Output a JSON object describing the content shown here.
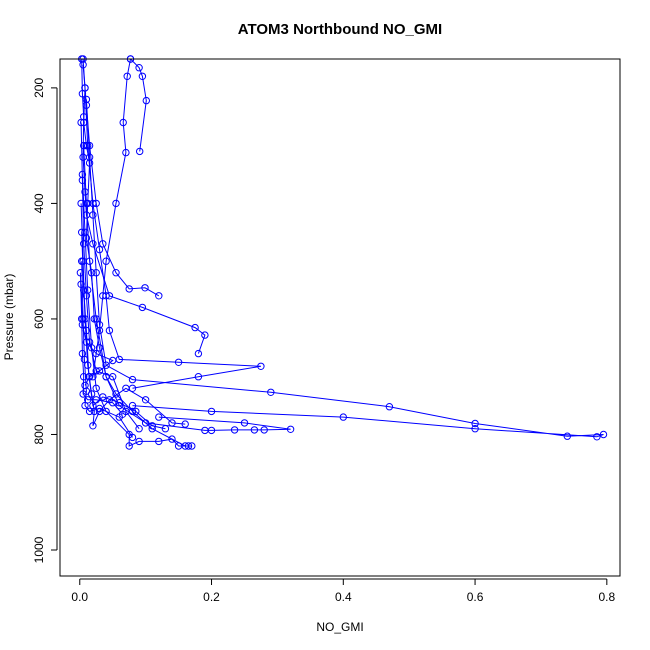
{
  "chart_data": {
    "type": "scatter",
    "title": "ATOM3 Northbound NO_GMI",
    "xlabel": "NO_GMI",
    "ylabel": "Pressure (mbar)",
    "xlim": [
      -0.03,
      0.82
    ],
    "ylim": [
      1045,
      150
    ],
    "y_reversed": true,
    "x_ticks": [
      0.0,
      0.2,
      0.4,
      0.6,
      0.8
    ],
    "x_tick_labels": [
      "0.0",
      "0.2",
      "0.4",
      "0.6",
      "0.8"
    ],
    "y_ticks": [
      200,
      400,
      600,
      800,
      1000
    ],
    "y_tick_labels": [
      "200",
      "400",
      "600",
      "800",
      "1000"
    ],
    "grid": false,
    "style": "points connected by lines, open circles",
    "series_color": "#0000ff",
    "series": [
      {
        "segments": [
          [
            [
              0.077,
              150
            ],
            [
              0.09,
              165
            ],
            [
              0.095,
              180
            ],
            [
              0.101,
              222
            ],
            [
              0.091,
              310
            ]
          ],
          [
            [
              0.077,
              150
            ],
            [
              0.072,
              180
            ],
            [
              0.066,
              260
            ],
            [
              0.07,
              312
            ],
            [
              0.055,
              400
            ],
            [
              0.04,
              500
            ],
            [
              0.035,
              560
            ],
            [
              0.03,
              620
            ],
            [
              0.02,
              700
            ]
          ],
          [
            [
              0.005,
              150
            ],
            [
              0.008,
              200
            ],
            [
              0.006,
              260
            ],
            [
              0.01,
              300
            ],
            [
              0.015,
              330
            ],
            [
              0.012,
              400
            ],
            [
              0.01,
              460
            ],
            [
              0.018,
              520
            ],
            [
              0.022,
              600
            ],
            [
              0.03,
              650
            ],
            [
              0.04,
              700
            ],
            [
              0.055,
              730
            ],
            [
              0.08,
              760
            ],
            [
              0.11,
              790
            ],
            [
              0.16,
              820
            ],
            [
              0.17,
              820
            ]
          ],
          [
            [
              0.003,
              150
            ],
            [
              0.004,
              210
            ],
            [
              0.006,
              250
            ],
            [
              0.005,
              320
            ],
            [
              0.008,
              380
            ],
            [
              0.01,
              420
            ],
            [
              0.02,
              470
            ],
            [
              0.045,
              560
            ],
            [
              0.095,
              580
            ],
            [
              0.175,
              615
            ],
            [
              0.19,
              628
            ],
            [
              0.18,
              660
            ]
          ],
          [
            [
              0.005,
              160
            ],
            [
              0.01,
              230
            ],
            [
              0.015,
              300
            ],
            [
              0.025,
              400
            ],
            [
              0.035,
              470
            ],
            [
              0.055,
              520
            ],
            [
              0.075,
              548
            ],
            [
              0.099,
              546
            ],
            [
              0.12,
              560
            ]
          ],
          [
            [
              0.008,
              200
            ],
            [
              0.012,
              300
            ],
            [
              0.02,
              400
            ],
            [
              0.03,
              480
            ],
            [
              0.04,
              560
            ],
            [
              0.045,
              620
            ],
            [
              0.06,
              670
            ],
            [
              0.15,
              675
            ],
            [
              0.275,
              682
            ],
            [
              0.18,
              700
            ],
            [
              0.08,
              720
            ]
          ],
          [
            [
              0.01,
              220
            ],
            [
              0.015,
              320
            ],
            [
              0.02,
              420
            ],
            [
              0.025,
              520
            ],
            [
              0.03,
              610
            ],
            [
              0.04,
              680
            ],
            [
              0.08,
              705
            ],
            [
              0.29,
              727
            ],
            [
              0.47,
              752
            ],
            [
              0.6,
              781
            ],
            [
              0.74,
              803
            ],
            [
              0.795,
              800
            ],
            [
              0.785,
              804
            ],
            [
              0.6,
              790
            ],
            [
              0.4,
              770
            ],
            [
              0.2,
              760
            ],
            [
              0.08,
              750
            ]
          ],
          [
            [
              0.006,
              300
            ],
            [
              0.01,
              400
            ],
            [
              0.015,
              500
            ],
            [
              0.025,
              600
            ],
            [
              0.04,
              700
            ],
            [
              0.06,
              750
            ],
            [
              0.1,
              780
            ],
            [
              0.19,
              793
            ],
            [
              0.2,
              793
            ],
            [
              0.235,
              792
            ],
            [
              0.265,
              792
            ],
            [
              0.28,
              792
            ],
            [
              0.32,
              791
            ],
            [
              0.25,
              780
            ],
            [
              0.12,
              770
            ]
          ],
          [
            [
              0.004,
              350
            ],
            [
              0.008,
              450
            ],
            [
              0.012,
              550
            ],
            [
              0.018,
              650
            ],
            [
              0.025,
              720
            ],
            [
              0.04,
              760
            ],
            [
              0.075,
              800
            ],
            [
              0.075,
              820
            ],
            [
              0.09,
              812
            ],
            [
              0.12,
              812
            ],
            [
              0.14,
              808
            ],
            [
              0.15,
              820
            ],
            [
              0.165,
              820
            ]
          ],
          [
            [
              0.002,
              400
            ],
            [
              0.005,
              500
            ],
            [
              0.008,
              600
            ],
            [
              0.012,
              680
            ],
            [
              0.018,
              730
            ],
            [
              0.022,
              760
            ],
            [
              0.02,
              785
            ],
            [
              0.03,
              760
            ],
            [
              0.045,
              740
            ],
            [
              0.07,
              720
            ],
            [
              0.1,
              740
            ],
            [
              0.14,
              780
            ],
            [
              0.16,
              782
            ]
          ],
          [
            [
              0.003,
              450
            ],
            [
              0.006,
              550
            ],
            [
              0.01,
              620
            ],
            [
              0.014,
              700
            ],
            [
              0.02,
              750
            ],
            [
              0.035,
              735
            ],
            [
              0.06,
              745
            ],
            [
              0.085,
              760
            ],
            [
              0.11,
              785
            ],
            [
              0.13,
              790
            ]
          ],
          [
            [
              0.003,
              500
            ],
            [
              0.005,
              600
            ],
            [
              0.007,
              670
            ],
            [
              0.01,
              725
            ],
            [
              0.008,
              750
            ],
            [
              0.015,
              760
            ],
            [
              0.03,
              755
            ],
            [
              0.06,
              770
            ],
            [
              0.08,
              805
            ]
          ],
          [
            [
              0.002,
              260
            ],
            [
              0.004,
              360
            ],
            [
              0.006,
              470
            ],
            [
              0.01,
              560
            ],
            [
              0.015,
              640
            ],
            [
              0.025,
              690
            ],
            [
              0.05,
              700
            ],
            [
              0.07,
              760
            ],
            [
              0.09,
              790
            ]
          ],
          [
            [
              0.001,
              520
            ],
            [
              0.003,
              600
            ],
            [
              0.004,
              660
            ],
            [
              0.006,
              700
            ],
            [
              0.005,
              730
            ],
            [
              0.012,
              740
            ],
            [
              0.025,
              740
            ],
            [
              0.05,
              745
            ],
            [
              0.065,
              765
            ]
          ],
          [
            [
              0.002,
              540
            ],
            [
              0.004,
              610
            ],
            [
              0.01,
              640
            ],
            [
              0.025,
              660
            ],
            [
              0.05,
              672
            ],
            [
              0.03,
              690
            ],
            [
              0.015,
              700
            ],
            [
              0.008,
              715
            ]
          ]
        ]
      }
    ]
  }
}
